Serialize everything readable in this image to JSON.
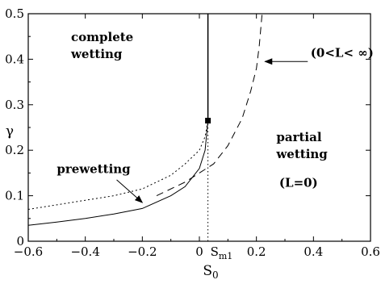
{
  "chart_data": {
    "type": "line",
    "xlabel": "S",
    "xlabel_subscript": "0",
    "ylabel": "γ",
    "xlim": [
      -0.6,
      0.6
    ],
    "ylim": [
      0,
      0.5
    ],
    "x_ticks": [
      -0.6,
      -0.4,
      -0.2,
      0,
      0.2,
      0.4,
      0.6
    ],
    "x_tick_labels": [
      "−0.6",
      "−0.4",
      "−0.2",
      "0",
      "0.2",
      "0.4",
      "0.6"
    ],
    "y_ticks": [
      0,
      0.1,
      0.2,
      0.3,
      0.4,
      0.5
    ],
    "y_tick_labels": [
      "0",
      "0.1",
      "0.2",
      "0.3",
      "0.4",
      "0.5"
    ],
    "special_x_tick": {
      "x": 0.03,
      "label": "S",
      "subscript": "m1"
    },
    "series": [
      {
        "style": "solid",
        "points": [
          [
            -0.6,
            0.035
          ],
          [
            -0.5,
            0.042
          ],
          [
            -0.4,
            0.05
          ],
          [
            -0.3,
            0.06
          ],
          [
            -0.2,
            0.072
          ],
          [
            -0.1,
            0.1
          ],
          [
            -0.05,
            0.12
          ],
          [
            0.0,
            0.16
          ],
          [
            0.02,
            0.2
          ],
          [
            0.03,
            0.265
          ]
        ]
      },
      {
        "style": "dotted",
        "points": [
          [
            -0.6,
            0.07
          ],
          [
            -0.5,
            0.08
          ],
          [
            -0.4,
            0.09
          ],
          [
            -0.3,
            0.1
          ],
          [
            -0.2,
            0.115
          ],
          [
            -0.1,
            0.145
          ],
          [
            -0.05,
            0.17
          ],
          [
            0.0,
            0.2
          ],
          [
            0.02,
            0.23
          ],
          [
            0.03,
            0.265
          ]
        ]
      },
      {
        "style": "dashed",
        "points": [
          [
            -0.15,
            0.1
          ],
          [
            -0.05,
            0.13
          ],
          [
            0.05,
            0.17
          ],
          [
            0.1,
            0.21
          ],
          [
            0.15,
            0.27
          ],
          [
            0.18,
            0.33
          ],
          [
            0.2,
            0.38
          ],
          [
            0.21,
            0.43
          ],
          [
            0.22,
            0.5
          ]
        ]
      },
      {
        "style": "solid-vertical",
        "points": [
          [
            0.03,
            0.265
          ],
          [
            0.03,
            0.5
          ]
        ]
      },
      {
        "style": "dotted-vertical",
        "points": [
          [
            0.03,
            0.0
          ],
          [
            0.03,
            0.265
          ]
        ]
      }
    ],
    "marker": {
      "x": 0.03,
      "y": 0.265,
      "shape": "square"
    },
    "annotations": [
      {
        "text_lines": [
          "complete",
          "wetting"
        ],
        "x": -0.45,
        "y": 0.44
      },
      {
        "text_lines": [
          "partial",
          "wetting"
        ],
        "x": 0.27,
        "y": 0.22
      },
      {
        "text_lines": [
          "(L=0)"
        ],
        "x": 0.28,
        "y": 0.12
      },
      {
        "text_lines": [
          "prewetting"
        ],
        "x": -0.5,
        "y": 0.15
      },
      {
        "text_lines": [
          "(0<L< ∞)"
        ],
        "x": 0.39,
        "y": 0.405
      }
    ],
    "arrows": [
      {
        "from": [
          0.38,
          0.395
        ],
        "to": [
          0.23,
          0.395
        ]
      },
      {
        "from": [
          -0.29,
          0.135
        ],
        "to": [
          -0.2,
          0.085
        ]
      }
    ]
  }
}
